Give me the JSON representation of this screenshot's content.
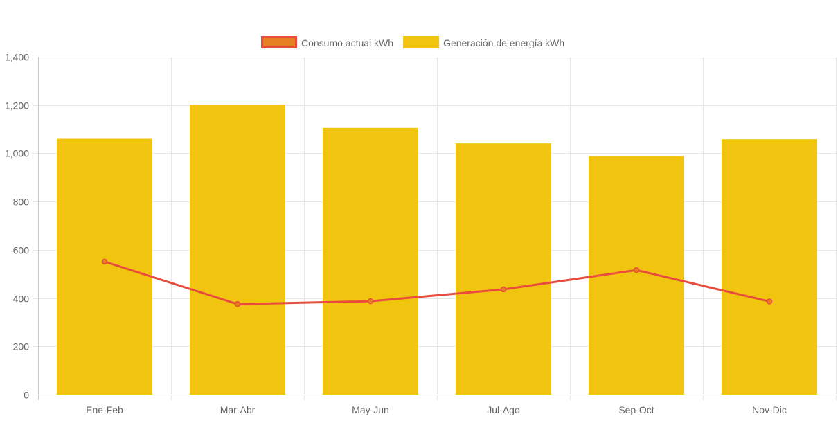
{
  "chart_data": {
    "type": "bar",
    "categories": [
      "Ene-Feb",
      "Mar-Abr",
      "May-Jun",
      "Jul-Ago",
      "Sep-Oct",
      "Nov-Dic"
    ],
    "series": [
      {
        "name": "Consumo actual kWh",
        "type": "line",
        "values": [
          551,
          375,
          387,
          436,
          516,
          386
        ],
        "color": "#e74c3c",
        "legend_fill": "#e67e22"
      },
      {
        "name": "Generación de energía kWh",
        "type": "bar",
        "values": [
          1060,
          1202,
          1105,
          1041,
          988,
          1058
        ],
        "color": "#f1c40f"
      }
    ],
    "ylim": [
      0,
      1400
    ],
    "yticks": [
      {
        "value": 0,
        "label": "0"
      },
      {
        "value": 200,
        "label": "200"
      },
      {
        "value": 400,
        "label": "400"
      },
      {
        "value": 600,
        "label": "600"
      },
      {
        "value": 800,
        "label": "800"
      },
      {
        "value": 1000,
        "label": "1,000"
      },
      {
        "value": 1200,
        "label": "1,200"
      },
      {
        "value": 1400,
        "label": "1,400"
      }
    ],
    "grid": true,
    "legend_position": "top-center",
    "title": "",
    "xlabel": "",
    "ylabel": ""
  }
}
